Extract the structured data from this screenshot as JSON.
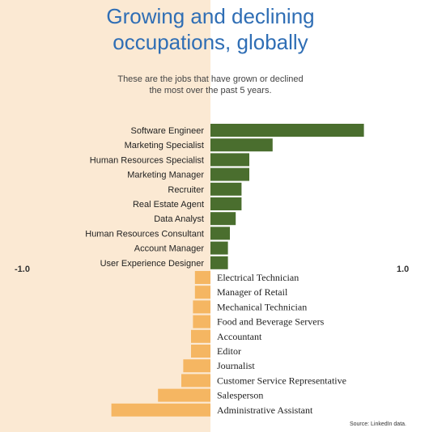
{
  "title": "Growing and declining\noccupations, globally",
  "subtitle": "These are the jobs that have grown or declined\nthe most over the past 5 years.",
  "source": "Source: LinkedIn data.",
  "colors": {
    "growing": "#4a6e2e",
    "declining": "#f5b662",
    "left_background": "#fbe9d3"
  },
  "chart_data": {
    "type": "bar",
    "orientation": "horizontal",
    "xlim": [
      -1.0,
      1.0
    ],
    "x_tick_labels": [
      "-1.0",
      "1.0"
    ],
    "categories": [
      "Software Engineer",
      "Marketing Specialist",
      "Human Resources Specialist",
      "Marketing Manager",
      "Recruiter",
      "Real Estate Agent",
      "Data Analyst",
      "Human Resources Consultant",
      "Account Manager",
      "User Experience Designer",
      "Electrical Technician",
      "Manager of Retail",
      "Mechanical Technician",
      "Food and Beverage Servers",
      "Accountant",
      "Editor",
      "Journalist",
      "Customer Service Representative",
      "Salesperson",
      "Administrative Assistant"
    ],
    "values": [
      0.79,
      0.32,
      0.2,
      0.2,
      0.16,
      0.16,
      0.13,
      0.1,
      0.09,
      0.09,
      -0.08,
      -0.08,
      -0.09,
      -0.09,
      -0.1,
      -0.1,
      -0.14,
      -0.15,
      -0.27,
      -0.51
    ]
  }
}
